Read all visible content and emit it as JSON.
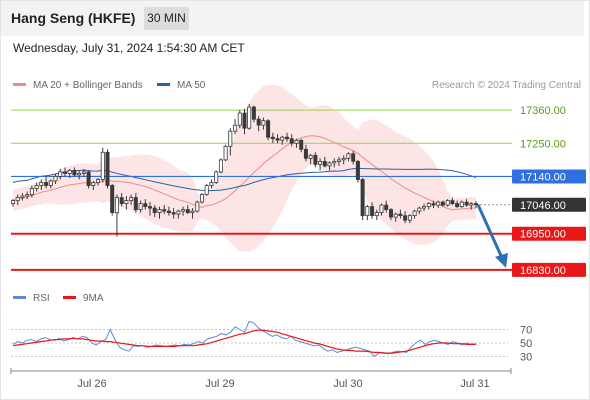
{
  "header": {
    "title": "Hang Seng (HKFE)",
    "interval": "30 MIN"
  },
  "datetime": "Wednesday, July 31, 2024 1:54:30 AM CET",
  "legend": {
    "bb": "MA 20 + Bollinger Bands",
    "ma50": "MA 50",
    "rsi": "RSI",
    "rsi_ma": "9MA"
  },
  "credit": "Research © 2024 Trading Central",
  "colors": {
    "bb_band": "#fde0e0",
    "ma20": "#f08a8a",
    "ma50": "#2f5fa8",
    "candle": "#3a3a3a",
    "resistance": "#9acd5a",
    "support": "#e81818",
    "pivot": "#2f6fe0",
    "last": "#333333",
    "forecast": "#2f6fb4",
    "rsi": "#5b8bd8",
    "rsi_ma": "#e81818"
  },
  "chart_data": [
    {
      "type": "candlestick",
      "title": "Hang Seng (HKFE)",
      "interval": "30 MIN",
      "ylim": [
        16790,
        17420
      ],
      "x_ticks": [
        "Jul 26",
        "Jul 29",
        "Jul 30",
        "Jul 31"
      ],
      "price_labels": [
        "17360.00",
        "17250.00",
        "17140.00",
        "17046.00",
        "16950.00",
        "16830.00"
      ],
      "levels": [
        {
          "value": 17360,
          "kind": "resistance",
          "label": "17360.00"
        },
        {
          "value": 17250,
          "kind": "resistance",
          "label": "17250.00"
        },
        {
          "value": 17140,
          "kind": "pivot",
          "label": "17140.00"
        },
        {
          "value": 17046,
          "kind": "last",
          "label": "17046.00"
        },
        {
          "value": 16950,
          "kind": "support",
          "label": "16950.00"
        },
        {
          "value": 16830,
          "kind": "support",
          "label": "16830.00"
        }
      ],
      "candles": [
        [
          17050,
          17065,
          17040,
          17060
        ],
        [
          17060,
          17080,
          17045,
          17070
        ],
        [
          17070,
          17085,
          17060,
          17075
        ],
        [
          17075,
          17090,
          17065,
          17080
        ],
        [
          17080,
          17110,
          17070,
          17100
        ],
        [
          17100,
          17120,
          17090,
          17110
        ],
        [
          17110,
          17130,
          17095,
          17120
        ],
        [
          17120,
          17140,
          17100,
          17110
        ],
        [
          17110,
          17130,
          17100,
          17125
        ],
        [
          17125,
          17150,
          17115,
          17140
        ],
        [
          17140,
          17165,
          17130,
          17155
        ],
        [
          17155,
          17170,
          17140,
          17150
        ],
        [
          17150,
          17165,
          17135,
          17160
        ],
        [
          17160,
          17170,
          17140,
          17145
        ],
        [
          17145,
          17160,
          17130,
          17150
        ],
        [
          17150,
          17165,
          17140,
          17155
        ],
        [
          17155,
          17160,
          17100,
          17110
        ],
        [
          17110,
          17125,
          17095,
          17120
        ],
        [
          17120,
          17135,
          17110,
          17130
        ],
        [
          17130,
          17235,
          17120,
          17220
        ],
        [
          17220,
          17230,
          17100,
          17110
        ],
        [
          17110,
          17115,
          17010,
          17020
        ],
        [
          17020,
          17080,
          16940,
          17070
        ],
        [
          17070,
          17085,
          17040,
          17050
        ],
        [
          17050,
          17075,
          17030,
          17060
        ],
        [
          17060,
          17080,
          17045,
          17070
        ],
        [
          17070,
          17085,
          17020,
          17030
        ],
        [
          17030,
          17060,
          17020,
          17050
        ],
        [
          17050,
          17065,
          17030,
          17040
        ],
        [
          17040,
          17055,
          17010,
          17035
        ],
        [
          17035,
          17045,
          17005,
          17020
        ],
        [
          17020,
          17040,
          17000,
          17030
        ],
        [
          17030,
          17045,
          17015,
          17025
        ],
        [
          17025,
          17040,
          17010,
          17020
        ],
        [
          17020,
          17035,
          17000,
          17015
        ],
        [
          17015,
          17030,
          17000,
          17025
        ],
        [
          17025,
          17040,
          17010,
          17030
        ],
        [
          17030,
          17045,
          17015,
          17020
        ],
        [
          17020,
          17035,
          17000,
          17025
        ],
        [
          17025,
          17060,
          17020,
          17055
        ],
        [
          17055,
          17085,
          17050,
          17080
        ],
        [
          17080,
          17115,
          17075,
          17110
        ],
        [
          17110,
          17130,
          17100,
          17120
        ],
        [
          17120,
          17160,
          17115,
          17155
        ],
        [
          17155,
          17200,
          17150,
          17195
        ],
        [
          17195,
          17245,
          17190,
          17240
        ],
        [
          17240,
          17300,
          17210,
          17290
        ],
        [
          17290,
          17330,
          17280,
          17310
        ],
        [
          17310,
          17360,
          17300,
          17350
        ],
        [
          17350,
          17365,
          17280,
          17300
        ],
        [
          17300,
          17380,
          17295,
          17370
        ],
        [
          17370,
          17375,
          17320,
          17330
        ],
        [
          17330,
          17340,
          17290,
          17310
        ],
        [
          17310,
          17335,
          17295,
          17325
        ],
        [
          17325,
          17330,
          17260,
          17270
        ],
        [
          17270,
          17285,
          17250,
          17265
        ],
        [
          17265,
          17280,
          17250,
          17260
        ],
        [
          17260,
          17275,
          17245,
          17270
        ],
        [
          17270,
          17285,
          17255,
          17265
        ],
        [
          17265,
          17280,
          17240,
          17250
        ],
        [
          17250,
          17265,
          17235,
          17260
        ],
        [
          17260,
          17265,
          17220,
          17230
        ],
        [
          17230,
          17245,
          17190,
          17200
        ],
        [
          17200,
          17215,
          17180,
          17210
        ],
        [
          17210,
          17220,
          17170,
          17180
        ],
        [
          17180,
          17200,
          17160,
          17190
        ],
        [
          17190,
          17205,
          17170,
          17175
        ],
        [
          17175,
          17190,
          17160,
          17185
        ],
        [
          17185,
          17200,
          17170,
          17190
        ],
        [
          17190,
          17205,
          17175,
          17195
        ],
        [
          17195,
          17210,
          17180,
          17200
        ],
        [
          17200,
          17220,
          17190,
          17215
        ],
        [
          17215,
          17225,
          17180,
          17190
        ],
        [
          17190,
          17195,
          17120,
          17130
        ],
        [
          17130,
          17135,
          16995,
          17010
        ],
        [
          17010,
          17045,
          16995,
          17040
        ],
        [
          17040,
          17055,
          17000,
          17010
        ],
        [
          17010,
          17030,
          16995,
          17020
        ],
        [
          17020,
          17050,
          17010,
          17045
        ],
        [
          17045,
          17060,
          17020,
          17030
        ],
        [
          17030,
          17035,
          16995,
          17005
        ],
        [
          17005,
          17020,
          16990,
          17015
        ],
        [
          17015,
          17030,
          17000,
          17010
        ],
        [
          17010,
          17025,
          16985,
          16995
        ],
        [
          16995,
          17015,
          16985,
          17010
        ],
        [
          17010,
          17030,
          17000,
          17025
        ],
        [
          17025,
          17040,
          17015,
          17035
        ],
        [
          17035,
          17050,
          17025,
          17040
        ],
        [
          17040,
          17055,
          17030,
          17050
        ],
        [
          17050,
          17060,
          17035,
          17045
        ],
        [
          17045,
          17060,
          17035,
          17055
        ],
        [
          17055,
          17060,
          17040,
          17045
        ],
        [
          17045,
          17065,
          17040,
          17060
        ],
        [
          17060,
          17070,
          17045,
          17050
        ],
        [
          17050,
          17060,
          17035,
          17040
        ],
        [
          17040,
          17060,
          17035,
          17055
        ],
        [
          17055,
          17065,
          17040,
          17045
        ],
        [
          17045,
          17055,
          17030,
          17050
        ],
        [
          17050,
          17058,
          17035,
          17046
        ]
      ],
      "forecast_to": 16830
    },
    {
      "type": "line",
      "title": "RSI",
      "ylim": [
        10,
        90
      ],
      "y_ticks": [
        30,
        50,
        70
      ],
      "series": [
        {
          "name": "RSI",
          "values": [
            48,
            52,
            50,
            54,
            55,
            52,
            56,
            58,
            55,
            54,
            57,
            53,
            55,
            58,
            56,
            60,
            58,
            50,
            47,
            52,
            55,
            70,
            55,
            44,
            40,
            38,
            46,
            45,
            46,
            44,
            45,
            47,
            46,
            45,
            46,
            47,
            46,
            48,
            47,
            49,
            52,
            50,
            56,
            58,
            60,
            64,
            62,
            66,
            74,
            70,
            66,
            82,
            80,
            72,
            68,
            64,
            60,
            62,
            58,
            56,
            60,
            54,
            52,
            50,
            48,
            46,
            47,
            42,
            38,
            40,
            36,
            38,
            40,
            42,
            44,
            42,
            40,
            38,
            30,
            35,
            36,
            34,
            36,
            38,
            37,
            36,
            44,
            50,
            54,
            48,
            52,
            54,
            52,
            50,
            48,
            52,
            50,
            47,
            50,
            48,
            49
          ]
        },
        {
          "name": "9MA",
          "values": [
            46,
            47,
            48,
            49,
            50,
            51,
            52,
            53,
            54,
            55,
            55,
            56,
            56,
            57,
            56,
            56,
            55,
            54,
            53,
            53,
            52,
            52,
            51,
            50,
            49,
            48,
            47,
            46,
            46,
            45,
            45,
            45,
            45,
            45,
            45,
            45,
            46,
            46,
            46,
            46,
            47,
            48,
            49,
            51,
            53,
            55,
            57,
            59,
            61,
            63,
            64,
            66,
            68,
            69,
            69,
            68,
            67,
            66,
            64,
            62,
            60,
            58,
            56,
            54,
            52,
            50,
            49,
            47,
            45,
            43,
            41,
            40,
            39,
            39,
            38,
            38,
            38,
            37,
            36,
            36,
            35,
            35,
            35,
            36,
            37,
            38,
            40,
            42,
            44,
            46,
            48,
            49,
            50,
            50,
            50,
            49,
            49,
            49,
            48,
            48,
            48
          ]
        }
      ]
    }
  ]
}
